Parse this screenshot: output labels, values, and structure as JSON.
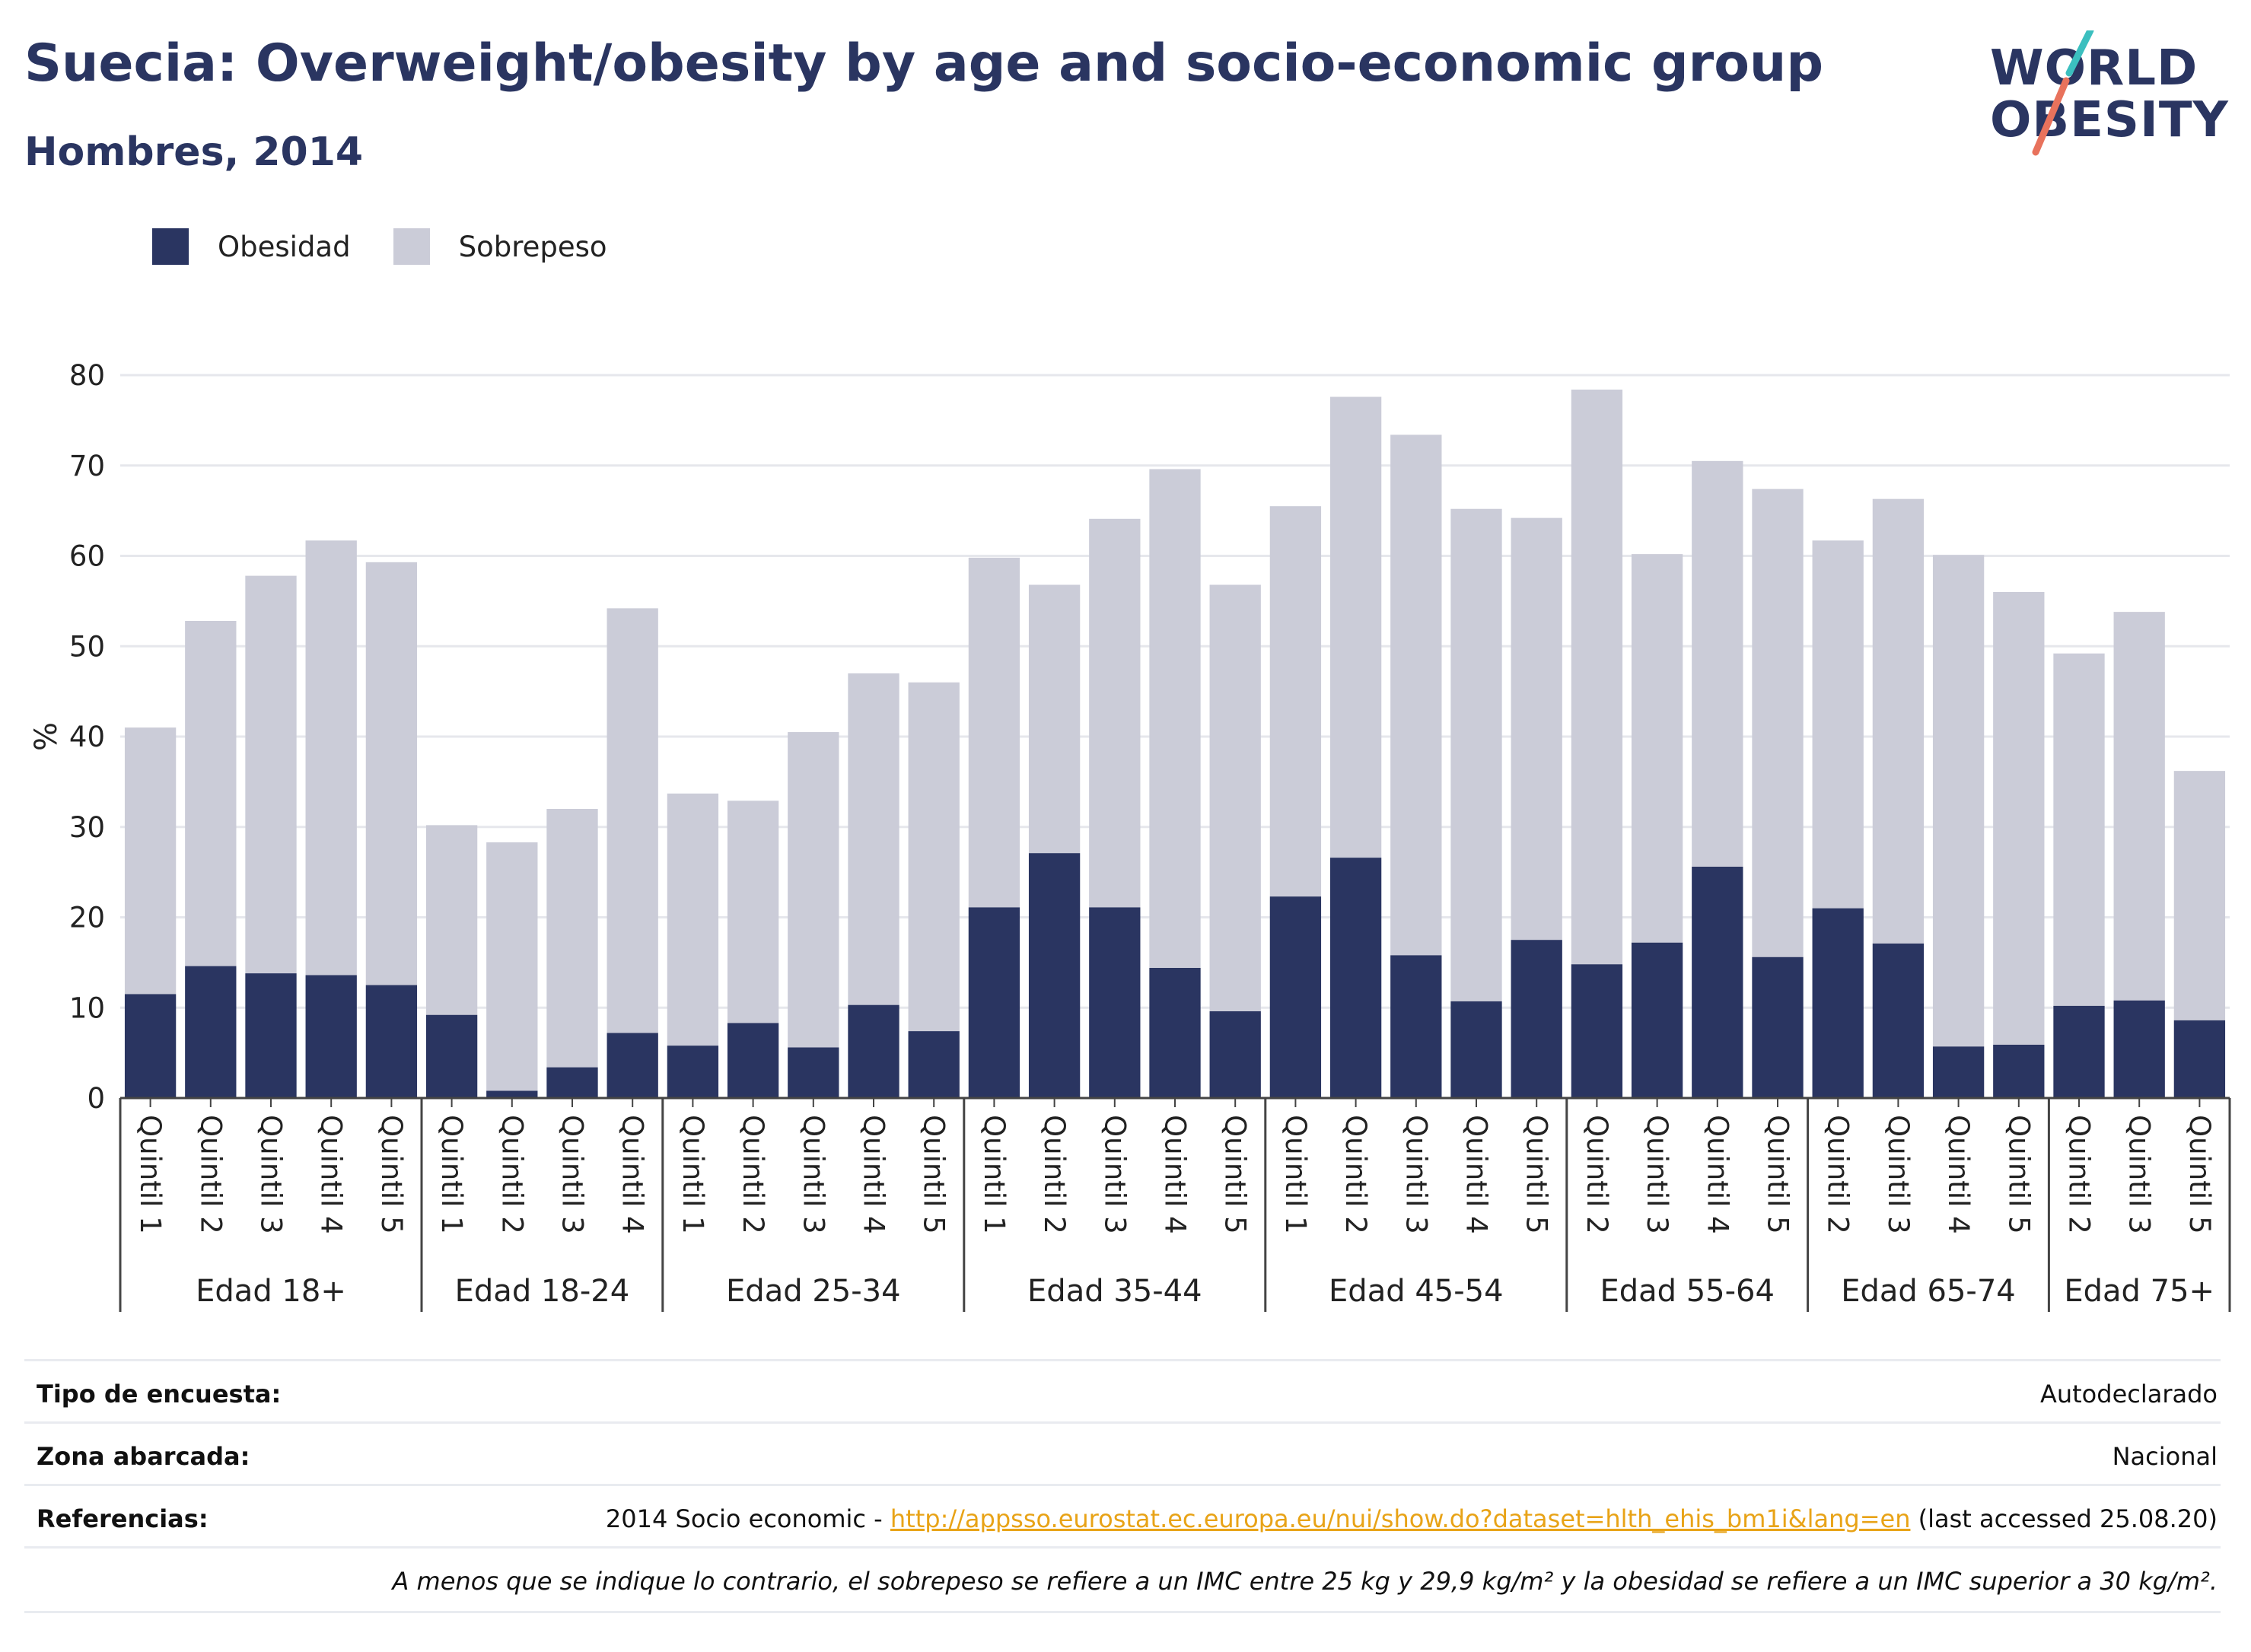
{
  "header": {
    "title": "Suecia: Overweight/obesity by age and socio-economic group",
    "subtitle": "Hombres, 2014"
  },
  "logo": {
    "line1": "WORLD",
    "line2": "OBESITY"
  },
  "colors": {
    "obesity": "#2a3561",
    "overweight": "#cbccd8",
    "accent_teal": "#3bbfbf",
    "accent_coral": "#e8725c",
    "link": "#e8a317"
  },
  "chart_data": {
    "type": "bar",
    "stacked": true,
    "ylabel": "%",
    "ylim": [
      0,
      80
    ],
    "yticks": [
      0,
      10,
      20,
      30,
      40,
      50,
      60,
      70,
      80
    ],
    "grid": true,
    "legend": "top-left",
    "legend_entries": [
      "Obesidad",
      "Sobrepeso"
    ],
    "groups": [
      {
        "label": "Edad 18+",
        "bars": [
          {
            "label": "Quintil 1",
            "obesity": 11.5,
            "total": 41.0
          },
          {
            "label": "Quintil 2",
            "obesity": 14.6,
            "total": 52.8
          },
          {
            "label": "Quintil 3",
            "obesity": 13.8,
            "total": 57.8
          },
          {
            "label": "Quintil 4",
            "obesity": 13.6,
            "total": 61.7
          },
          {
            "label": "Quintil 5",
            "obesity": 12.5,
            "total": 59.3
          }
        ]
      },
      {
        "label": "Edad 18-24",
        "bars": [
          {
            "label": "Quintil 1",
            "obesity": 9.2,
            "total": 30.2
          },
          {
            "label": "Quintil 2",
            "obesity": 0.8,
            "total": 28.3
          },
          {
            "label": "Quintil 3",
            "obesity": 3.4,
            "total": 32.0
          },
          {
            "label": "Quintil 4",
            "obesity": 7.2,
            "total": 54.2
          }
        ]
      },
      {
        "label": "Edad 25-34",
        "bars": [
          {
            "label": "Quintil 1",
            "obesity": 5.8,
            "total": 33.7
          },
          {
            "label": "Quintil 2",
            "obesity": 8.3,
            "total": 32.9
          },
          {
            "label": "Quintil 3",
            "obesity": 5.6,
            "total": 40.5
          },
          {
            "label": "Quintil 4",
            "obesity": 10.3,
            "total": 47.0
          },
          {
            "label": "Quintil 5",
            "obesity": 7.4,
            "total": 46.0
          }
        ]
      },
      {
        "label": "Edad 35-44",
        "bars": [
          {
            "label": "Quintil 1",
            "obesity": 21.1,
            "total": 59.8
          },
          {
            "label": "Quintil 2",
            "obesity": 27.1,
            "total": 56.8
          },
          {
            "label": "Quintil 3",
            "obesity": 21.1,
            "total": 64.1
          },
          {
            "label": "Quintil 4",
            "obesity": 14.4,
            "total": 69.6
          },
          {
            "label": "Quintil 5",
            "obesity": 9.6,
            "total": 56.8
          }
        ]
      },
      {
        "label": "Edad 45-54",
        "bars": [
          {
            "label": "Quintil 1",
            "obesity": 22.3,
            "total": 65.5
          },
          {
            "label": "Quintil 2",
            "obesity": 26.6,
            "total": 77.6
          },
          {
            "label": "Quintil 3",
            "obesity": 15.8,
            "total": 73.4
          },
          {
            "label": "Quintil 4",
            "obesity": 10.7,
            "total": 65.2
          },
          {
            "label": "Quintil 5",
            "obesity": 17.5,
            "total": 64.2
          }
        ]
      },
      {
        "label": "Edad 55-64",
        "bars": [
          {
            "label": "Quintil 2",
            "obesity": 14.8,
            "total": 78.4
          },
          {
            "label": "Quintil 3",
            "obesity": 17.2,
            "total": 60.2
          },
          {
            "label": "Quintil 4",
            "obesity": 25.6,
            "total": 70.5
          },
          {
            "label": "Quintil 5",
            "obesity": 15.6,
            "total": 67.4
          }
        ]
      },
      {
        "label": "Edad 65-74",
        "bars": [
          {
            "label": "Quintil 2",
            "obesity": 21.0,
            "total": 61.7
          },
          {
            "label": "Quintil 3",
            "obesity": 17.1,
            "total": 66.3
          },
          {
            "label": "Quintil 4",
            "obesity": 5.7,
            "total": 60.1
          },
          {
            "label": "Quintil 5",
            "obesity": 5.9,
            "total": 56.0
          }
        ]
      },
      {
        "label": "Edad 75+",
        "bars": [
          {
            "label": "Quintil 2",
            "obesity": 10.2,
            "total": 49.2
          },
          {
            "label": "Quintil 3",
            "obesity": 10.8,
            "total": 53.8
          },
          {
            "label": "Quintil 5",
            "obesity": 8.6,
            "total": 36.2
          }
        ]
      }
    ]
  },
  "info": {
    "survey_type_label": "Tipo de encuesta:",
    "survey_type_value": "Autodeclarado",
    "coverage_label": "Zona abarcada:",
    "coverage_value": "Nacional",
    "references_label": "Referencias:",
    "references_prefix": "2014 Socio economic - ",
    "references_link": "http://appsso.eurostat.ec.europa.eu/nui/show.do?dataset=hlth_ehis_bm1i&lang=en",
    "references_suffix": " (last accessed 25.08.20)",
    "note": "A menos que se indique lo contrario, el sobrepeso se refiere a un IMC entre 25 kg y 29,9 kg/m² y la obesidad se refiere a un IMC superior a 30 kg/m²."
  }
}
